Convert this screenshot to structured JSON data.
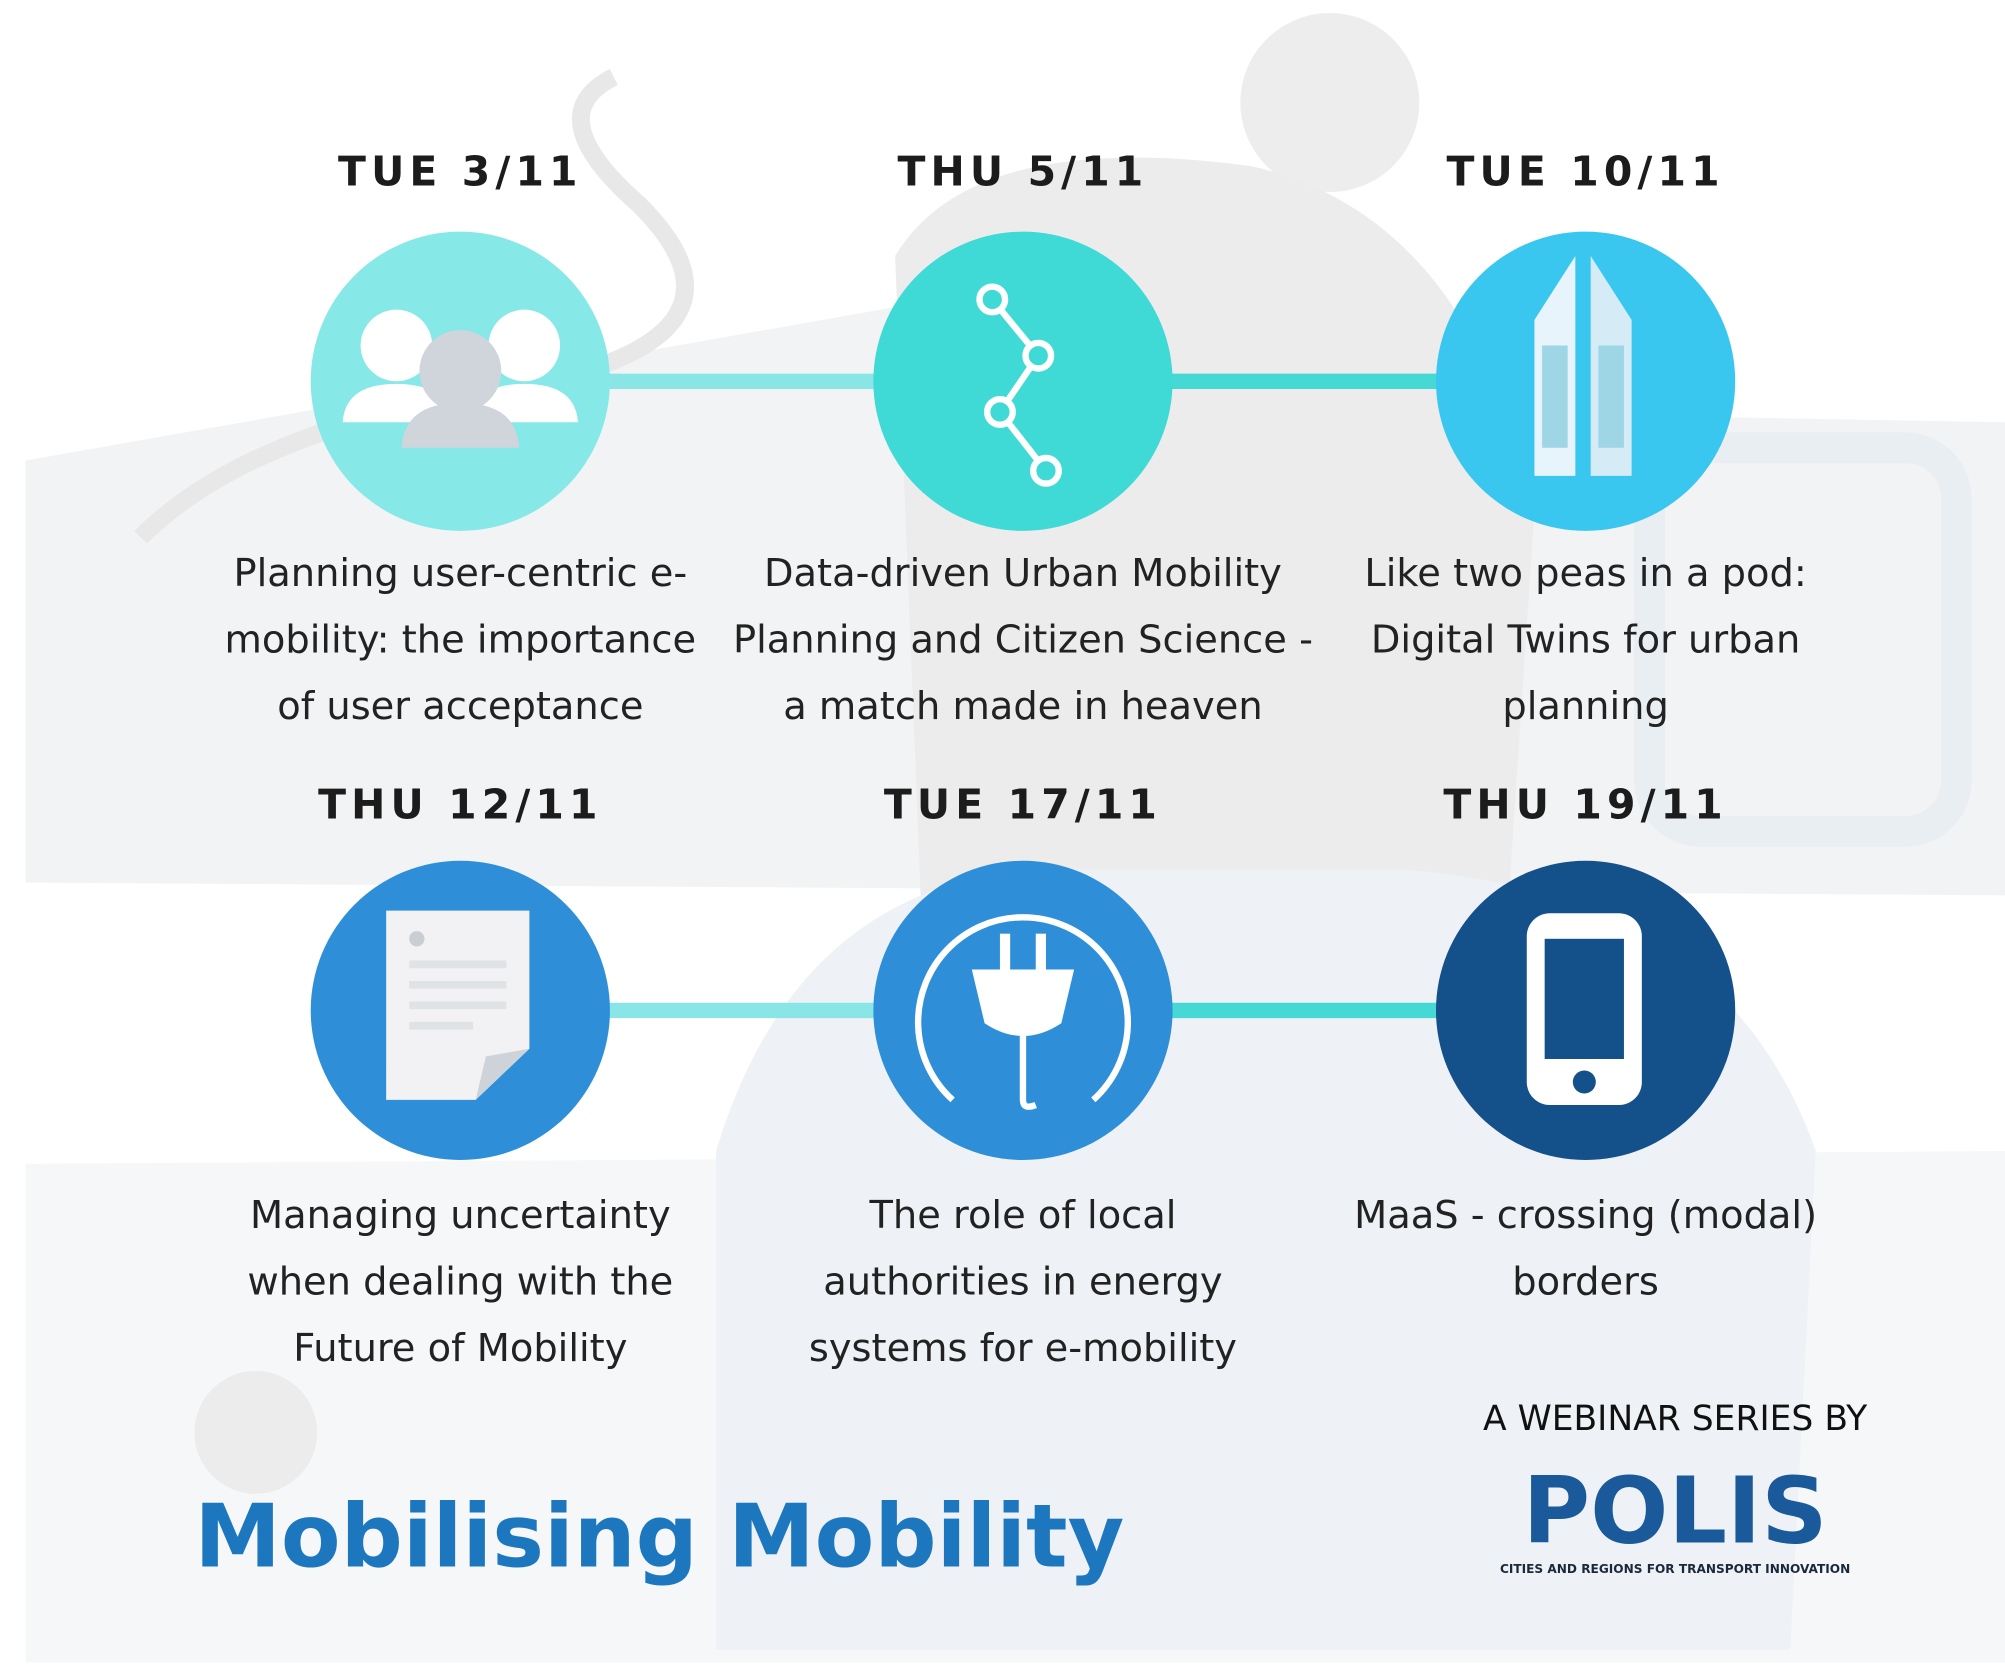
{
  "events": [
    {
      "date": "TUE 3/11",
      "lines": [
        "Planning user-centric e-",
        "mobility: the importance",
        "of user acceptance"
      ]
    },
    {
      "date": "THU 5/11",
      "lines": [
        "Data-driven Urban Mobility",
        "Planning and Citizen Science -",
        "a match made in heaven"
      ]
    },
    {
      "date": "TUE 10/11",
      "lines": [
        "Like two peas in a pod:",
        "Digital Twins for urban",
        "planning"
      ]
    },
    {
      "date": "THU 12/11",
      "lines": [
        "Managing uncertainty",
        "when dealing with the",
        "Future of Mobility"
      ]
    },
    {
      "date": "TUE 17/11",
      "lines": [
        "The role of local",
        "authorities in energy",
        "systems for e-mobility"
      ]
    },
    {
      "date": "THU 19/11",
      "lines": [
        "MaaS - crossing (modal)",
        "borders"
      ]
    }
  ],
  "footer": {
    "title": "Mobilising Mobility",
    "byline": "A WEBINAR SERIES BY",
    "logo": "POLIS",
    "tagline": "CITIES AND REGIONS FOR TRANSPORT INNOVATION"
  }
}
